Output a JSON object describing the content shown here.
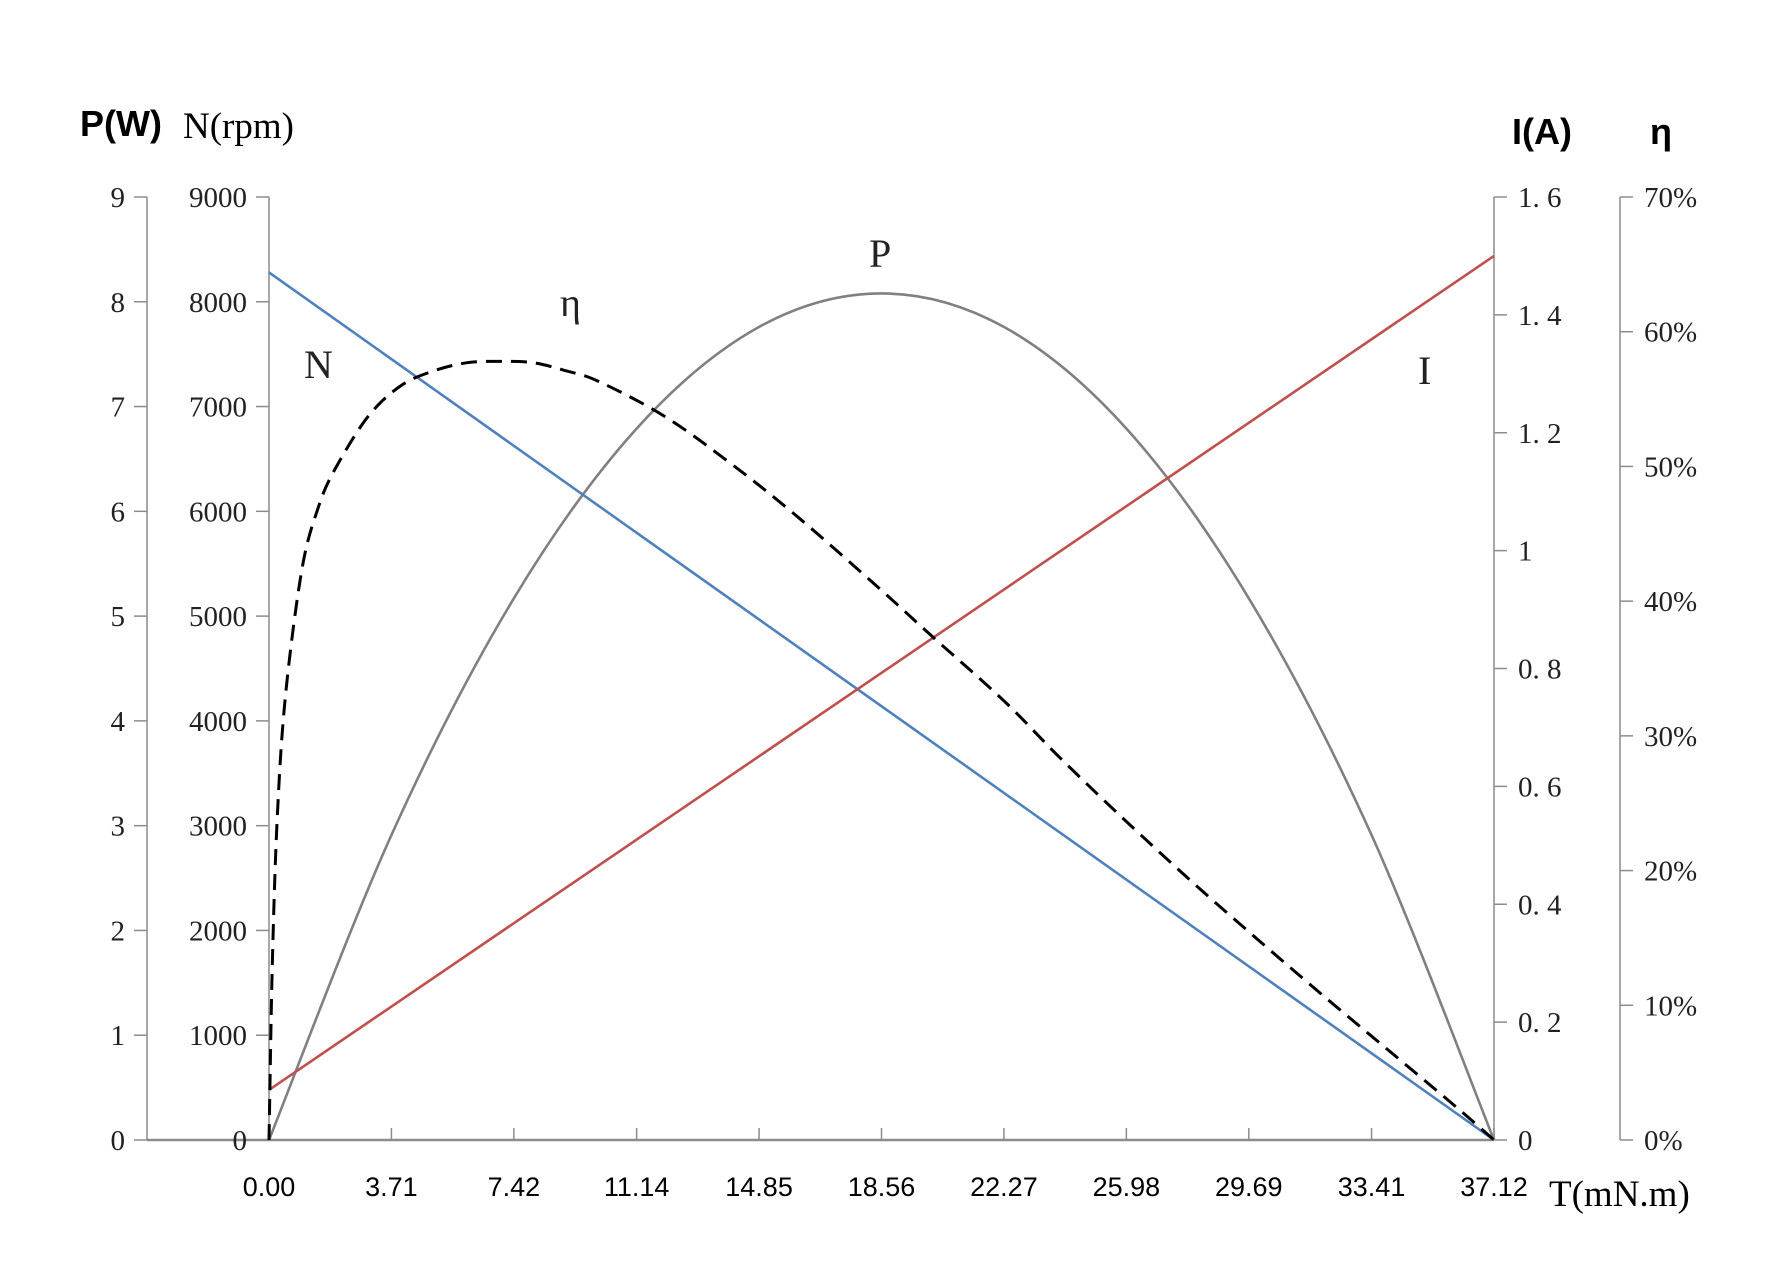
{
  "chart_data": {
    "type": "line",
    "x": [
      0.0,
      3.71,
      7.42,
      11.14,
      14.85,
      18.56,
      22.27,
      25.98,
      29.69,
      33.41,
      37.12
    ],
    "x_tick_labels": [
      "0.00",
      "3.71",
      "7.42",
      "11.14",
      "14.85",
      "18.56",
      "22.27",
      "25.98",
      "29.69",
      "33.41",
      "37.12"
    ],
    "xlabel": "T(mN.m)",
    "xlim": [
      0,
      37.12
    ],
    "axes": {
      "power": {
        "label": "P(W)",
        "ylim": [
          0,
          9
        ],
        "tick_labels": [
          "0",
          "1",
          "2",
          "3",
          "4",
          "5",
          "6",
          "7",
          "8",
          "9"
        ]
      },
      "speed": {
        "label": "N(rpm)",
        "ylim": [
          0,
          9000
        ],
        "tick_labels": [
          "0",
          "1000",
          "2000",
          "3000",
          "4000",
          "5000",
          "6000",
          "7000",
          "8000",
          "9000"
        ]
      },
      "current": {
        "label": "I(A)",
        "ylim": [
          0,
          1.6
        ],
        "tick_labels": [
          "0",
          "0. 2",
          "0. 4",
          "0. 6",
          "0. 8",
          "1",
          "1. 2",
          "1. 4",
          "1. 6"
        ]
      },
      "efficiency": {
        "label": "η",
        "ylim": [
          0,
          0.7
        ],
        "tick_labels": [
          "0%",
          "10%",
          "20%",
          "30%",
          "40%",
          "50%",
          "60%",
          "70%"
        ]
      }
    },
    "series": [
      {
        "name": "N",
        "axis": "speed",
        "color": "#4f81bd",
        "dash": "solid",
        "x": [
          0,
          37.12
        ],
        "values": [
          8280,
          0
        ]
      },
      {
        "name": "I",
        "axis": "current",
        "color": "#c0504d",
        "dash": "solid",
        "x": [
          0,
          37.12
        ],
        "values": [
          0.085,
          1.5
        ]
      },
      {
        "name": "P",
        "axis": "power",
        "color": "#808080",
        "dash": "solid",
        "x": [
          0.0,
          3.71,
          7.42,
          11.14,
          14.85,
          18.56,
          22.27,
          25.98,
          29.69,
          33.41,
          37.12
        ],
        "values": [
          0,
          2.91,
          5.17,
          6.79,
          7.76,
          8.08,
          7.76,
          6.79,
          5.17,
          2.91,
          0
        ]
      },
      {
        "name": "η",
        "axis": "efficiency",
        "color": "#000000",
        "dash": "dashed",
        "x": [
          0.0,
          0.1,
          0.25,
          0.5,
          1.0,
          1.5,
          2.0,
          3.0,
          4.0,
          5.0,
          6.0,
          7.0,
          8.0,
          9.0,
          10.0,
          12.0,
          14.0,
          16.0,
          18.56,
          20.0,
          22.27,
          24.0,
          26.0,
          28.0,
          30.0,
          32.0,
          34.0,
          36.0,
          37.12
        ],
        "values": [
          0,
          0.13,
          0.24,
          0.33,
          0.424,
          0.47,
          0.498,
          0.537,
          0.56,
          0.571,
          0.577,
          0.578,
          0.577,
          0.571,
          0.563,
          0.537,
          0.502,
          0.463,
          0.408,
          0.376,
          0.326,
          0.283,
          0.236,
          0.191,
          0.148,
          0.106,
          0.065,
          0.024,
          0
        ]
      }
    ],
    "curve_labels": [
      "N",
      "η",
      "P",
      "I"
    ],
    "grid": false,
    "legend": "none"
  }
}
